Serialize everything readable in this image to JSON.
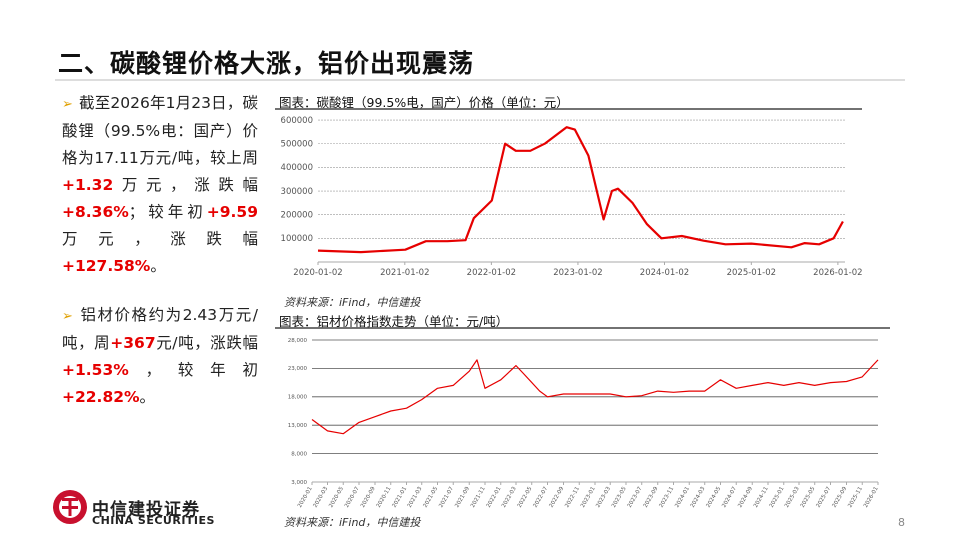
{
  "title": "二、碳酸锂价格大涨，铝价出现震荡",
  "bullets": [
    {
      "segments": [
        {
          "text": "截至2026年1月23日，碳酸锂（99.5%电：国产）价格为17.11万元/吨，较上周"
        },
        {
          "text": "+1.32",
          "color": "#e60000"
        },
        {
          "text": "万元，涨跌幅"
        },
        {
          "text": "+8.36%",
          "color": "#e60000"
        },
        {
          "text": "；较年初"
        },
        {
          "text": "+9.59",
          "color": "#e60000"
        },
        {
          "text": " 万元，涨跌幅"
        },
        {
          "text": "+127.58%",
          "color": "#e60000"
        },
        {
          "text": "。"
        }
      ]
    },
    {
      "segments": [
        {
          "text": "铝材价格约为2.43万元/吨，周"
        },
        {
          "text": "+367",
          "color": "#e60000"
        },
        {
          "text": "元/吨，涨跌幅"
        },
        {
          "text": "+1.53%",
          "color": "#e60000"
        },
        {
          "text": "，较年初"
        },
        {
          "text": "+22.82%",
          "color": "#e60000"
        },
        {
          "text": "。"
        }
      ]
    }
  ],
  "chart_data": [
    {
      "type": "line",
      "title": "图表：碳酸锂（99.5%电，国产）价格（单位：元）",
      "x": [
        "2020-01-02",
        "2020-07-01",
        "2021-01-04",
        "2021-04-01",
        "2021-07-01",
        "2021-09-15",
        "2021-10-20",
        "2022-01-04",
        "2022-03-01",
        "2022-04-15",
        "2022-06-15",
        "2022-08-15",
        "2022-11-15",
        "2022-12-20",
        "2023-02-15",
        "2023-04-20",
        "2023-05-25",
        "2023-06-20",
        "2023-08-20",
        "2023-10-20",
        "2023-12-20",
        "2024-03-15",
        "2024-06-15",
        "2024-09-15",
        "2025-01-02",
        "2025-06-20",
        "2025-08-15",
        "2025-10-15",
        "2025-12-15",
        "2026-01-23"
      ],
      "series": [
        {
          "color": "#e60000",
          "values": [
            48000,
            42000,
            52000,
            88000,
            88000,
            92000,
            185000,
            260000,
            500000,
            470000,
            470000,
            500000,
            570000,
            560000,
            450000,
            180000,
            300000,
            310000,
            250000,
            160000,
            100000,
            110000,
            90000,
            75000,
            78000,
            62000,
            80000,
            75000,
            100000,
            171100
          ]
        }
      ],
      "xlim": [
        "2020-01-02",
        "2026-02-01"
      ],
      "xticks": [
        "2020-01-02",
        "2021-01-02",
        "2022-01-02",
        "2023-01-02",
        "2024-01-02",
        "2025-01-02",
        "2026-01-02"
      ],
      "ylim": [
        0,
        630000
      ],
      "yticks": [
        100000,
        200000,
        300000,
        400000,
        500000,
        600000
      ],
      "grid": true,
      "source": "资料来源：iFind，中信建投"
    },
    {
      "type": "line",
      "title": "图表：铝材价格指数走势（单位：元/吨）",
      "x": [
        "2020-01",
        "2020-03",
        "2020-05",
        "2020-07",
        "2020-09",
        "2020-11",
        "2021-01",
        "2021-03",
        "2021-05",
        "2021-07",
        "2021-09",
        "2021-10",
        "2021-11",
        "2022-01",
        "2022-03",
        "2022-04",
        "2022-06",
        "2022-07",
        "2022-09",
        "2022-11",
        "2023-01",
        "2023-03",
        "2023-05",
        "2023-07",
        "2023-09",
        "2023-11",
        "2024-01",
        "2024-03",
        "2024-05",
        "2024-07",
        "2024-09",
        "2024-11",
        "2025-01",
        "2025-03",
        "2025-05",
        "2025-07",
        "2025-09",
        "2025-11",
        "2026-01"
      ],
      "series": [
        {
          "color": "#e60000",
          "values": [
            14000,
            12000,
            11500,
            13500,
            14500,
            15500,
            16000,
            17500,
            19500,
            20000,
            22500,
            24500,
            19500,
            21000,
            23500,
            22000,
            19000,
            18000,
            18500,
            18500,
            18500,
            18500,
            18000,
            18200,
            19000,
            18800,
            19000,
            19000,
            21000,
            19500,
            20000,
            20500,
            20000,
            20500,
            20000,
            20500,
            20700,
            21500,
            24500
          ]
        }
      ],
      "xlim": [
        "2020-01",
        "2026-01"
      ],
      "xticks": [
        "2020-01",
        "2020-03",
        "2020-05",
        "2020-07",
        "2020-09",
        "2020-11",
        "2021-01",
        "2021-03",
        "2021-05",
        "2021-07",
        "2021-09",
        "2021-11",
        "2022-01",
        "2022-03",
        "2022-05",
        "2022-07",
        "2022-09",
        "2022-11",
        "2023-01",
        "2023-03",
        "2023-05",
        "2023-07",
        "2023-09",
        "2023-11",
        "2024-01",
        "2024-03",
        "2024-05",
        "2024-07",
        "2024-09",
        "2024-11",
        "2025-01",
        "2025-03",
        "2025-05",
        "2025-07",
        "2025-09",
        "2025-11",
        "2026-01"
      ],
      "ylim": [
        3000,
        28000
      ],
      "yticks": [
        {
          "value": 3000,
          "label": "3,000"
        },
        {
          "value": 8000,
          "label": "8,000"
        },
        {
          "value": 13000,
          "label": "13,000"
        },
        {
          "value": 18000,
          "label": "18,000"
        },
        {
          "value": 23000,
          "label": "23,000"
        },
        {
          "value": 28000,
          "label": "28,000"
        }
      ],
      "grid": true,
      "source": "资料来源：iFind，中信建投"
    }
  ],
  "logo": {
    "name": "中信建投证券",
    "english": "CHINA SECURITIES"
  },
  "page_number": "8"
}
